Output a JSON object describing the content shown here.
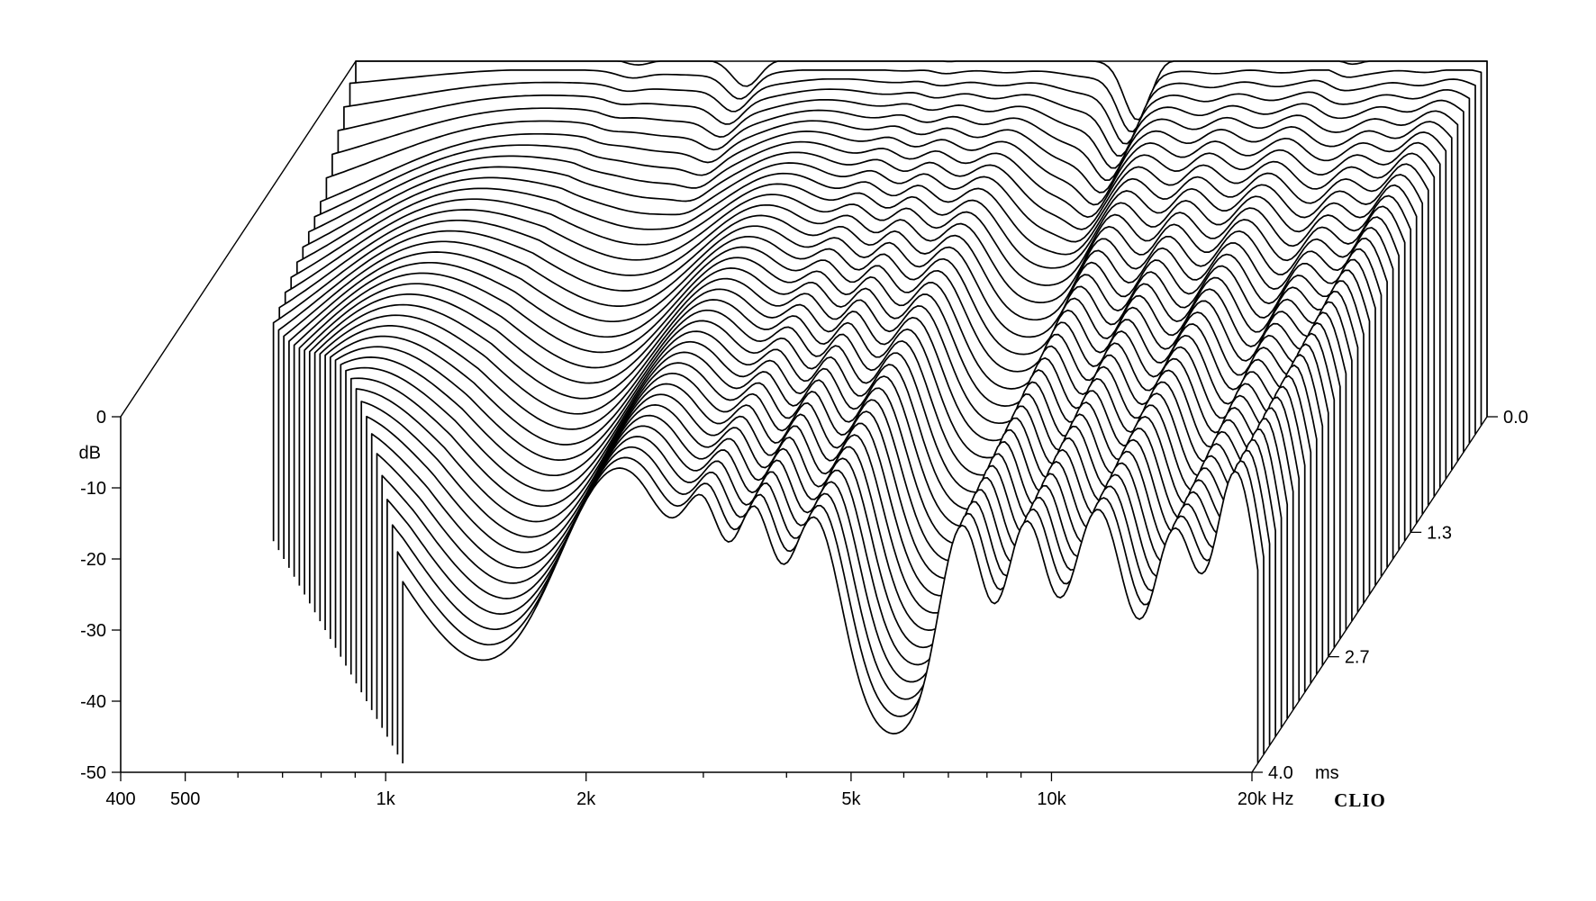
{
  "chart_data": {
    "type": "waterfall",
    "title": "",
    "brand": "CLIO",
    "ylabel": "dB",
    "zlabel_unit": "ms",
    "xlabel_unit": "Hz",
    "xlim": [
      400,
      20000
    ],
    "ylim": [
      -50,
      0
    ],
    "zlim": [
      0.0,
      4.0
    ],
    "x_scale": "log",
    "x_tick_labels": [
      {
        "value": 400,
        "label": "400"
      },
      {
        "value": 500,
        "label": "500"
      },
      {
        "value": 1000,
        "label": "1k"
      },
      {
        "value": 2000,
        "label": "2k"
      },
      {
        "value": 5000,
        "label": "5k"
      },
      {
        "value": 10000,
        "label": "10k"
      },
      {
        "value": 20000,
        "label": "20k"
      }
    ],
    "x_minor_ticks": [
      600,
      700,
      800,
      900,
      3000,
      4000,
      6000,
      7000,
      8000,
      9000
    ],
    "y_ticks": [
      {
        "value": 0,
        "label": "0"
      },
      {
        "value": -10,
        "label": "-10"
      },
      {
        "value": -20,
        "label": "-20"
      },
      {
        "value": -30,
        "label": "-30"
      },
      {
        "value": -40,
        "label": "-40"
      },
      {
        "value": -50,
        "label": "-50"
      }
    ],
    "z_ticks": [
      {
        "value": 0.0,
        "label": "0.0"
      },
      {
        "value": 1.3,
        "label": "1.3"
      },
      {
        "value": 2.7,
        "label": "2.7"
      },
      {
        "value": 4.0,
        "label": "4.0"
      }
    ],
    "slice_count": 40,
    "slice_spacing_ms": 0.1,
    "features": {
      "initial_level_db": 0,
      "decay_db_per_ms": 12,
      "notches_db": [
        {
          "freq": 1050,
          "depth": 2
        },
        {
          "freq": 1550,
          "depth": 6
        },
        {
          "freq": 3000,
          "depth": 3
        },
        {
          "freq": 6000,
          "depth": 9
        },
        {
          "freq": 12000,
          "depth": 4
        }
      ],
      "resonances_db": [
        {
          "freq": 700,
          "gain": 14,
          "width": 0.23,
          "decay_db_per_ms": 2.2
        },
        {
          "freq": 2200,
          "gain": 10,
          "width": 0.14,
          "decay_db_per_ms": 2.3
        },
        {
          "freq": 2900,
          "gain": 6,
          "width": 0.05,
          "decay_db_per_ms": 3.2
        },
        {
          "freq": 3500,
          "gain": 5,
          "width": 0.05,
          "decay_db_per_ms": 3.6
        },
        {
          "freq": 4300,
          "gain": 5,
          "width": 0.06,
          "decay_db_per_ms": 4.0
        },
        {
          "freq": 7200,
          "gain": 5,
          "width": 0.05,
          "decay_db_per_ms": 4.3
        },
        {
          "freq": 9000,
          "gain": 8,
          "width": 0.05,
          "decay_db_per_ms": 4.2
        },
        {
          "freq": 11500,
          "gain": 11,
          "width": 0.06,
          "decay_db_per_ms": 3.8
        },
        {
          "freq": 15000,
          "gain": 7,
          "width": 0.05,
          "decay_db_per_ms": 4.5
        },
        {
          "freq": 18500,
          "gain": 9,
          "width": 0.05,
          "decay_db_per_ms": 2.4
        }
      ]
    }
  }
}
